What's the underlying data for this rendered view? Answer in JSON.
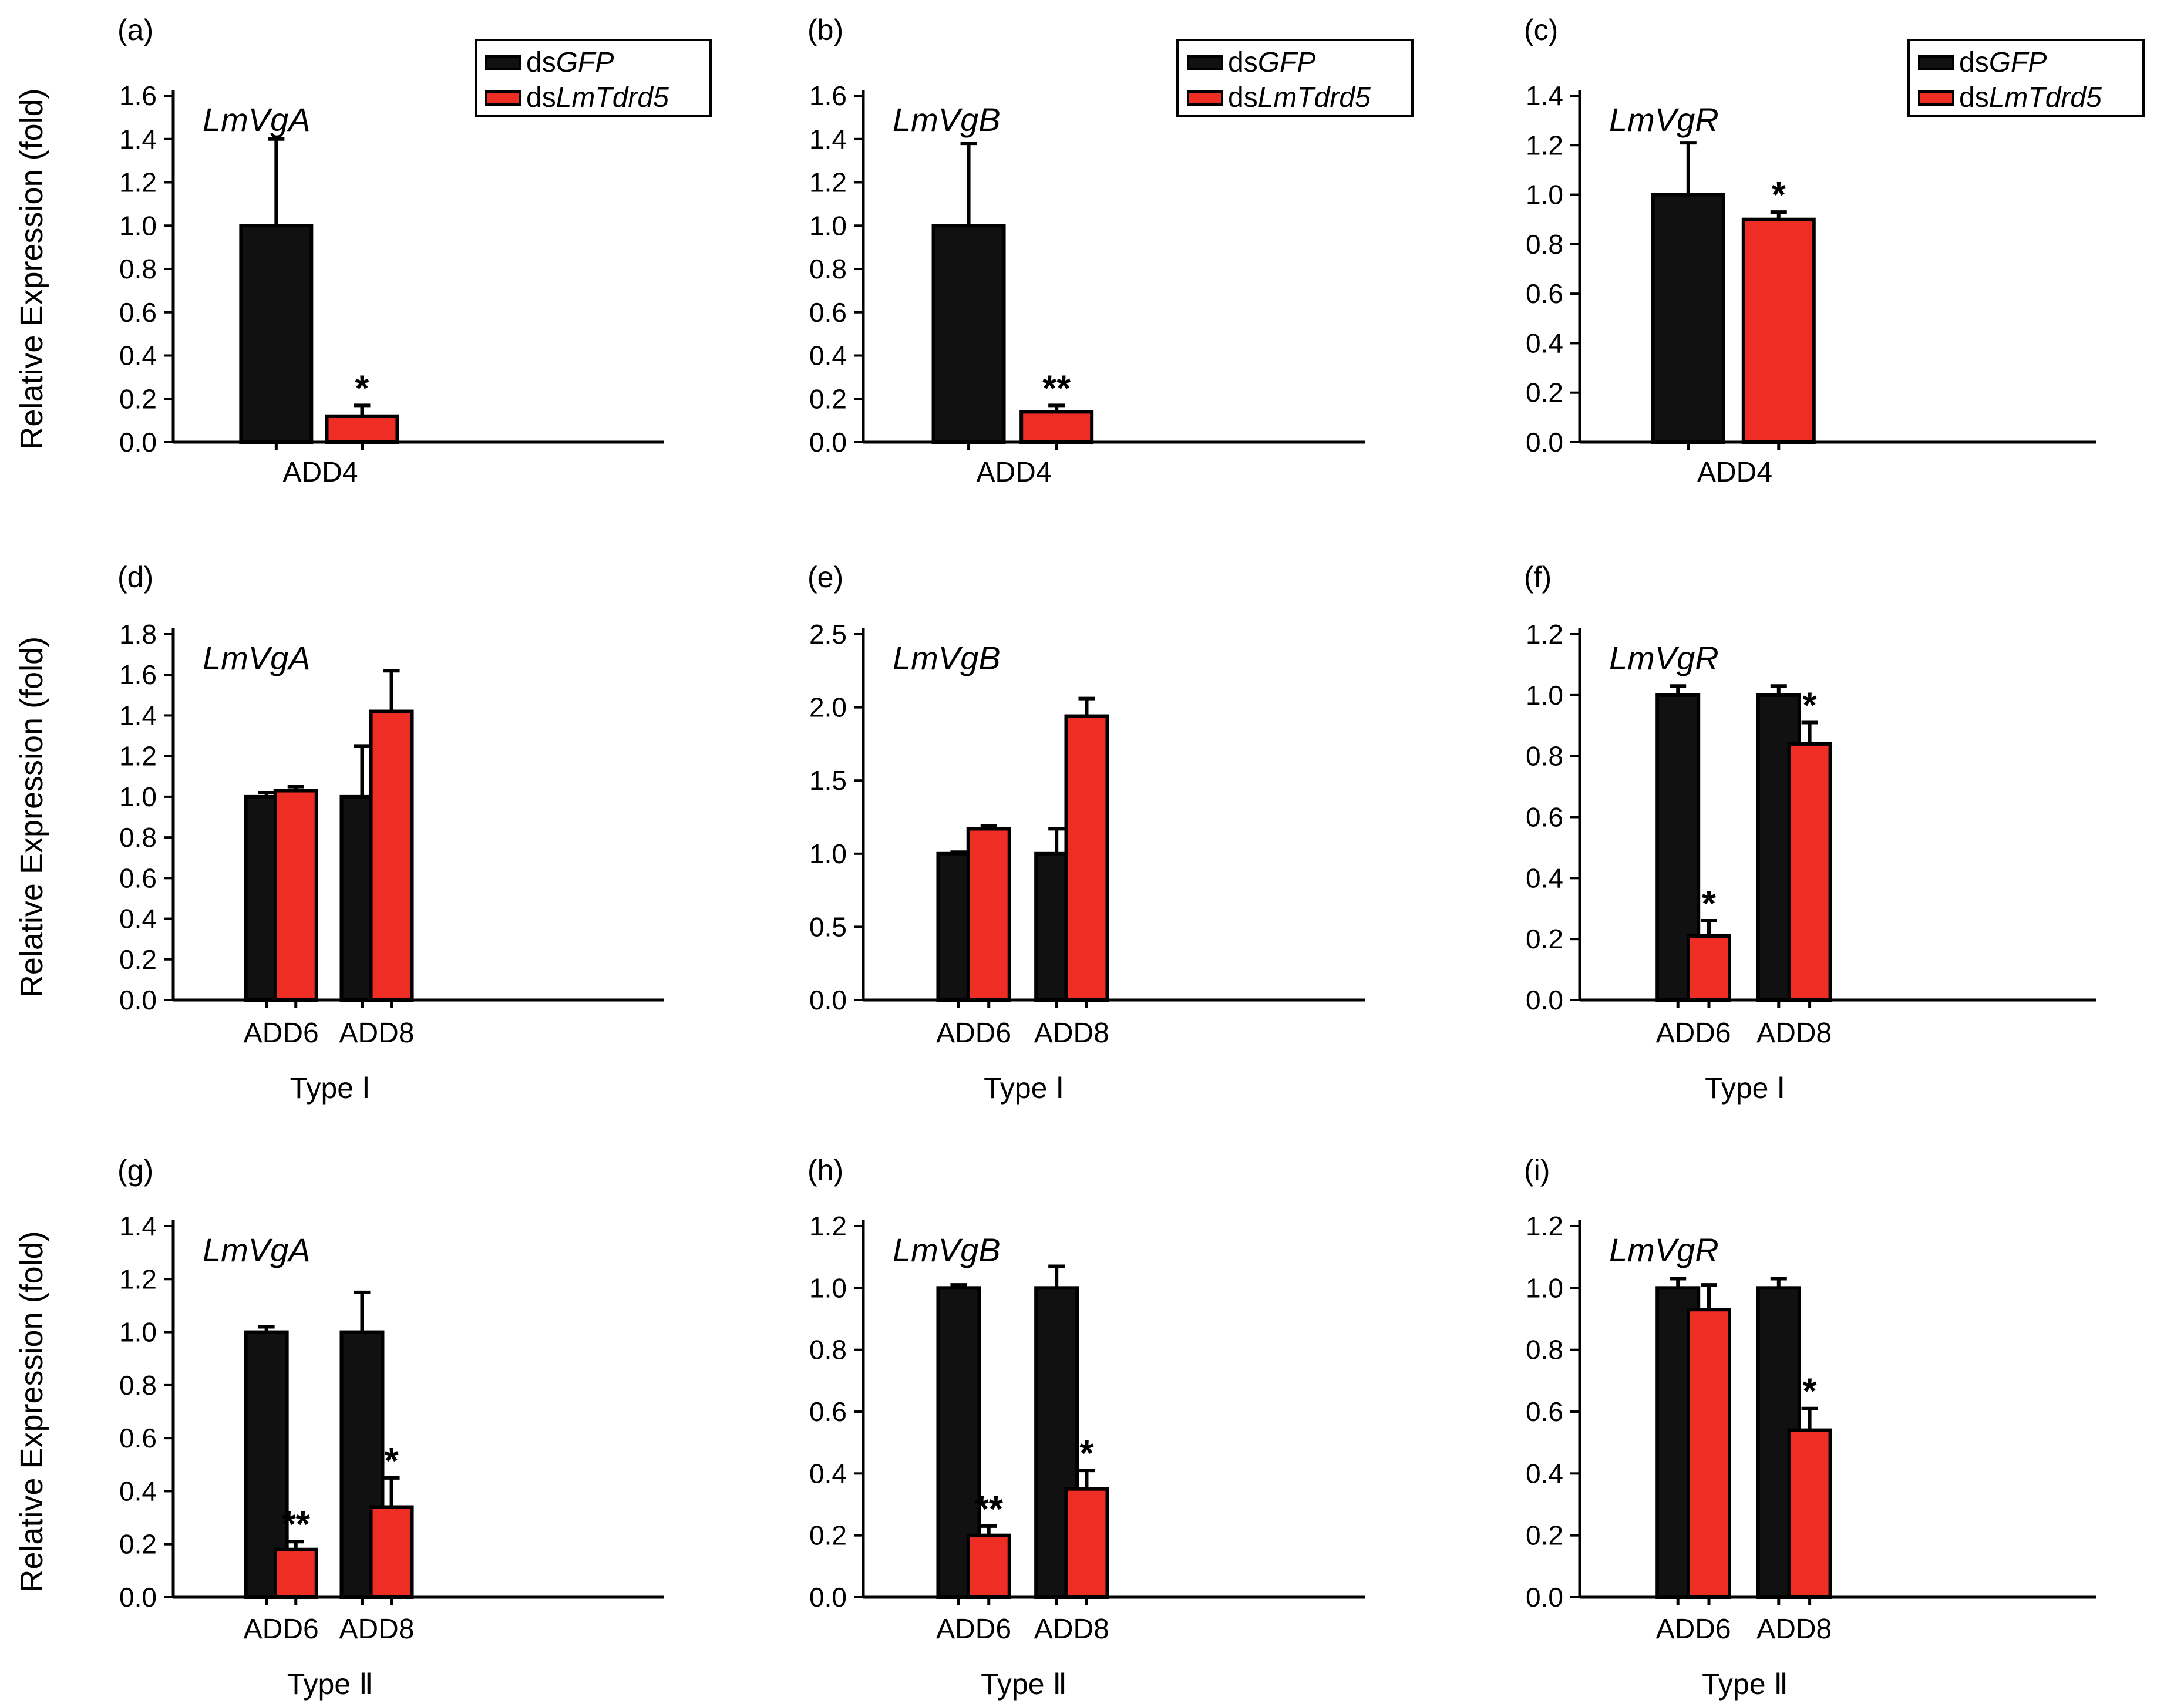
{
  "colors": {
    "dsGFP": "#111111",
    "dsLmTdrd5": "#ee2e24",
    "axis": "#000000",
    "text": "#000000"
  },
  "legend": [
    {
      "prefix": "ds",
      "name": "GFP",
      "color": "#111111"
    },
    {
      "prefix": "ds",
      "name": "LmTdrd5",
      "color": "#ee2e24"
    }
  ],
  "chart_data": [
    {
      "panel": "(a)",
      "type": "bar",
      "title": "LmVgA",
      "ylabel": "Relative Expression (fold)",
      "xgroup": "",
      "ylim": [
        0,
        1.6
      ],
      "yticks": [
        "0.0",
        "0.2",
        "0.4",
        "0.6",
        "0.8",
        "1.0",
        "1.2",
        "1.4",
        "1.6"
      ],
      "categories": [
        "ADD4"
      ],
      "series": [
        {
          "name": "dsGFP",
          "values": [
            1.0
          ],
          "errors": [
            0.4
          ],
          "marks": [
            ""
          ]
        },
        {
          "name": "dsLmTdrd5",
          "values": [
            0.12
          ],
          "errors": [
            0.05
          ],
          "marks": [
            "*"
          ]
        }
      ],
      "legend": "top-right"
    },
    {
      "panel": "(b)",
      "type": "bar",
      "title": "LmVgB",
      "ylabel": "",
      "xgroup": "",
      "ylim": [
        0,
        1.6
      ],
      "yticks": [
        "0.0",
        "0.2",
        "0.4",
        "0.6",
        "0.8",
        "1.0",
        "1.2",
        "1.4",
        "1.6"
      ],
      "categories": [
        "ADD4"
      ],
      "series": [
        {
          "name": "dsGFP",
          "values": [
            1.0
          ],
          "errors": [
            0.38
          ],
          "marks": [
            ""
          ]
        },
        {
          "name": "dsLmTdrd5",
          "values": [
            0.14
          ],
          "errors": [
            0.03
          ],
          "marks": [
            "**"
          ]
        }
      ],
      "legend": "top-right"
    },
    {
      "panel": "(c)",
      "type": "bar",
      "title": "LmVgR",
      "ylabel": "",
      "xgroup": "",
      "ylim": [
        0,
        1.4
      ],
      "yticks": [
        "0.0",
        "0.2",
        "0.4",
        "0.6",
        "0.8",
        "1.0",
        "1.2",
        "1.4"
      ],
      "categories": [
        "ADD4"
      ],
      "series": [
        {
          "name": "dsGFP",
          "values": [
            1.0
          ],
          "errors": [
            0.21
          ],
          "marks": [
            ""
          ]
        },
        {
          "name": "dsLmTdrd5",
          "values": [
            0.9
          ],
          "errors": [
            0.03
          ],
          "marks": [
            "*"
          ]
        }
      ],
      "legend": "top-right"
    },
    {
      "panel": "(d)",
      "type": "bar",
      "title": "LmVgA",
      "ylabel": "Relative Expression (fold)",
      "xgroup": "Type Ⅰ",
      "ylim": [
        0,
        1.8
      ],
      "yticks": [
        "0.0",
        "0.2",
        "0.4",
        "0.6",
        "0.8",
        "1.0",
        "1.2",
        "1.4",
        "1.6",
        "1.8"
      ],
      "categories": [
        "ADD6",
        "ADD8"
      ],
      "series": [
        {
          "name": "dsGFP",
          "values": [
            1.0,
            1.0
          ],
          "errors": [
            0.02,
            0.25
          ],
          "marks": [
            "",
            ""
          ]
        },
        {
          "name": "dsLmTdrd5",
          "values": [
            1.03,
            1.42
          ],
          "errors": [
            0.02,
            0.2
          ],
          "marks": [
            "",
            ""
          ]
        }
      ]
    },
    {
      "panel": "(e)",
      "type": "bar",
      "title": "LmVgB",
      "ylabel": "",
      "xgroup": "Type Ⅰ",
      "ylim": [
        0,
        2.5
      ],
      "yticks": [
        "0.0",
        "0.5",
        "1.0",
        "1.5",
        "2.0",
        "2.5"
      ],
      "categories": [
        "ADD6",
        "ADD8"
      ],
      "series": [
        {
          "name": "dsGFP",
          "values": [
            1.0,
            1.0
          ],
          "errors": [
            0.01,
            0.17
          ],
          "marks": [
            "",
            ""
          ]
        },
        {
          "name": "dsLmTdrd5",
          "values": [
            1.17,
            1.94
          ],
          "errors": [
            0.02,
            0.12
          ],
          "marks": [
            "",
            ""
          ]
        }
      ]
    },
    {
      "panel": "(f)",
      "type": "bar",
      "title": "LmVgR",
      "ylabel": "",
      "xgroup": "Type Ⅰ",
      "ylim": [
        0,
        1.2
      ],
      "yticks": [
        "0.0",
        "0.2",
        "0.4",
        "0.6",
        "0.8",
        "1.0",
        "1.2"
      ],
      "categories": [
        "ADD6",
        "ADD8"
      ],
      "series": [
        {
          "name": "dsGFP",
          "values": [
            1.0,
            1.0
          ],
          "errors": [
            0.03,
            0.03
          ],
          "marks": [
            "",
            ""
          ]
        },
        {
          "name": "dsLmTdrd5",
          "values": [
            0.21,
            0.84
          ],
          "errors": [
            0.05,
            0.07
          ],
          "marks": [
            "*",
            "*"
          ]
        }
      ]
    },
    {
      "panel": "(g)",
      "type": "bar",
      "title": "LmVgA",
      "ylabel": "Relative Expression (fold)",
      "xgroup": "Type Ⅱ",
      "ylim": [
        0,
        1.4
      ],
      "yticks": [
        "0.0",
        "0.2",
        "0.4",
        "0.6",
        "0.8",
        "1.0",
        "1.2",
        "1.4"
      ],
      "categories": [
        "ADD6",
        "ADD8"
      ],
      "series": [
        {
          "name": "dsGFP",
          "values": [
            1.0,
            1.0
          ],
          "errors": [
            0.02,
            0.15
          ],
          "marks": [
            "",
            ""
          ]
        },
        {
          "name": "dsLmTdrd5",
          "values": [
            0.18,
            0.34
          ],
          "errors": [
            0.03,
            0.11
          ],
          "marks": [
            "**",
            "*"
          ]
        }
      ]
    },
    {
      "panel": "(h)",
      "type": "bar",
      "title": "LmVgB",
      "ylabel": "",
      "xgroup": "Type Ⅱ",
      "ylim": [
        0,
        1.2
      ],
      "yticks": [
        "0.0",
        "0.2",
        "0.4",
        "0.6",
        "0.8",
        "1.0",
        "1.2"
      ],
      "categories": [
        "ADD6",
        "ADD8"
      ],
      "series": [
        {
          "name": "dsGFP",
          "values": [
            1.0,
            1.0
          ],
          "errors": [
            0.01,
            0.07
          ],
          "marks": [
            "",
            ""
          ]
        },
        {
          "name": "dsLmTdrd5",
          "values": [
            0.2,
            0.35
          ],
          "errors": [
            0.03,
            0.06
          ],
          "marks": [
            "**",
            "*"
          ]
        }
      ]
    },
    {
      "panel": "(i)",
      "type": "bar",
      "title": "LmVgR",
      "ylabel": "",
      "xgroup": "Type Ⅱ",
      "ylim": [
        0,
        1.2
      ],
      "yticks": [
        "0.0",
        "0.2",
        "0.4",
        "0.6",
        "0.8",
        "1.0",
        "1.2"
      ],
      "categories": [
        "ADD6",
        "ADD8"
      ],
      "series": [
        {
          "name": "dsGFP",
          "values": [
            1.0,
            1.0
          ],
          "errors": [
            0.03,
            0.03
          ],
          "marks": [
            "",
            ""
          ]
        },
        {
          "name": "dsLmTdrd5",
          "values": [
            0.93,
            0.54
          ],
          "errors": [
            0.08,
            0.07
          ],
          "marks": [
            "",
            "*"
          ]
        }
      ]
    }
  ]
}
